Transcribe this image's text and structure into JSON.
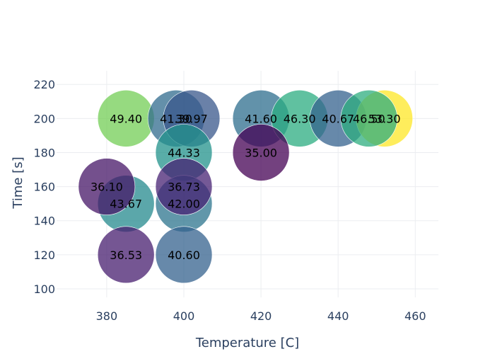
{
  "chart_data": {
    "type": "scatter",
    "xlabel": "Temperature [C]",
    "ylabel": "Time [s]",
    "xlim": [
      367,
      466
    ],
    "ylim": [
      95,
      228
    ],
    "xticks": [
      380,
      400,
      420,
      440,
      460
    ],
    "yticks": [
      100,
      120,
      140,
      160,
      180,
      200,
      220
    ],
    "grid": true,
    "colorscale": "viridis",
    "color_range": [
      35.0,
      53.3
    ],
    "points": [
      {
        "x": 385,
        "y": 200,
        "value": 49.4,
        "label": "49.40"
      },
      {
        "x": 398,
        "y": 200,
        "value": 41.3,
        "label": "41.30"
      },
      {
        "x": 402,
        "y": 200,
        "value": 39.97,
        "label": "39.97"
      },
      {
        "x": 400,
        "y": 180,
        "value": 44.33,
        "label": "44.33"
      },
      {
        "x": 420,
        "y": 200,
        "value": 41.6,
        "label": "41.60"
      },
      {
        "x": 430,
        "y": 200,
        "value": 46.3,
        "label": "46.30"
      },
      {
        "x": 440,
        "y": 200,
        "value": 40.67,
        "label": "40.67"
      },
      {
        "x": 452,
        "y": 200,
        "value": 53.3,
        "label": "53.30"
      },
      {
        "x": 448,
        "y": 200,
        "value": 46.5,
        "label": "46.50"
      },
      {
        "x": 420,
        "y": 180,
        "value": 35.0,
        "label": "35.00"
      },
      {
        "x": 385,
        "y": 150,
        "value": 43.67,
        "label": "43.67"
      },
      {
        "x": 380,
        "y": 160,
        "value": 36.1,
        "label": "36.10"
      },
      {
        "x": 400,
        "y": 150,
        "value": 42.0,
        "label": "42.00"
      },
      {
        "x": 400,
        "y": 160,
        "value": 36.73,
        "label": "36.73"
      },
      {
        "x": 385,
        "y": 120,
        "value": 36.53,
        "label": "36.53"
      },
      {
        "x": 400,
        "y": 120,
        "value": 40.6,
        "label": "40.60"
      }
    ]
  }
}
